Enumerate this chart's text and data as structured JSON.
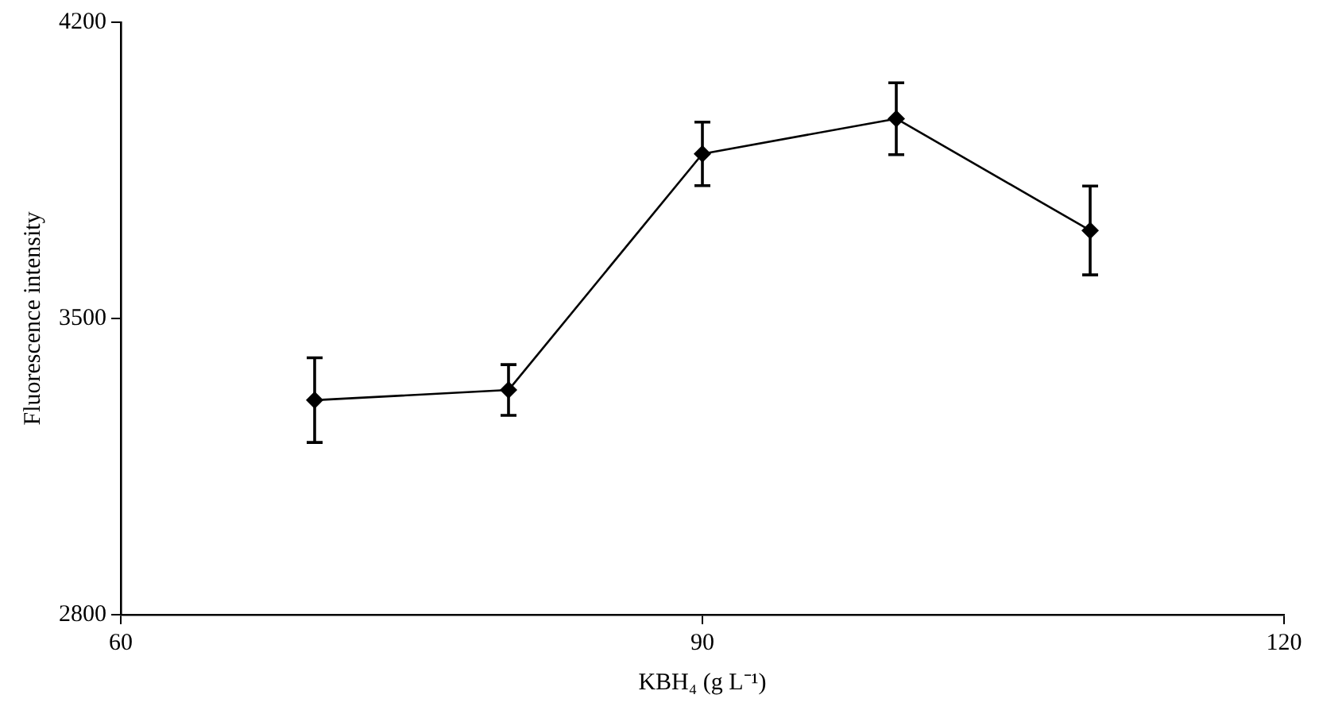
{
  "chart_data": {
    "type": "line",
    "xlabel": "KBH₄ (g L⁻¹)",
    "ylabel": "Fluorescence intensity",
    "x": [
      70,
      80,
      90,
      100,
      110
    ],
    "series": [
      {
        "color": "#000000",
        "values": [
          3307,
          3331,
          3889,
          3972,
          3708
        ],
        "errors": [
          100,
          60,
          75,
          85,
          105
        ]
      }
    ],
    "xlim": [
      60,
      120
    ],
    "xticks": [
      60,
      90,
      120
    ],
    "ylim": [
      2800,
      4200
    ],
    "yticks": [
      2800,
      3500,
      4200
    ],
    "grid": false,
    "legend": false,
    "marker": "diamond",
    "line_style": "solid"
  }
}
